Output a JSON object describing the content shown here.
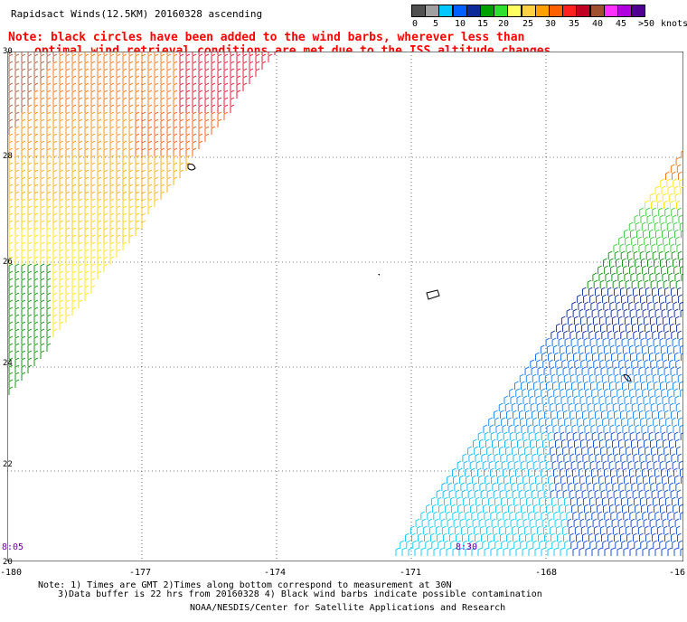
{
  "title": "Rapidsact Winds(12.5KM) 20160328 ascending",
  "note_line1": "Note: black circles have been added to the wind barbs, wherever less than",
  "note_line2": "optimal wind retrieval conditions are met due to the ISS altitude changes.",
  "colorbar": {
    "unit_label": "knots",
    "labels": [
      "0",
      "5",
      "10",
      "15",
      "20",
      "25",
      "30",
      "35",
      "40",
      "45",
      ">50"
    ],
    "colors": [
      "#505050",
      "#a0a0a0",
      "#00c8ff",
      "#0060ff",
      "#0a2a9a",
      "#00a000",
      "#30e030",
      "#ffff60",
      "#ffd040",
      "#ffa000",
      "#ff6000",
      "#ff2020",
      "#c00020",
      "#a05030",
      "#ff30ff",
      "#b000e0",
      "#500090"
    ]
  },
  "axes": {
    "x_ticks": [
      "-180",
      "-177",
      "-174",
      "-171",
      "-168",
      "-16"
    ],
    "y_ticks": [
      "30",
      "28",
      "26",
      "24",
      "22",
      "20"
    ]
  },
  "pass_times": {
    "left": "8:05",
    "right": "8:30"
  },
  "footnote_line1": "Note: 1) Times are GMT 2)Times along bottom correspond to measurement at 30N",
  "footnote_line2": "3)Data buffer is 22 hrs from 20160328 4) Black wind barbs indicate possible contamination",
  "credit": "NOAA/NESDIS/Center for Satellite Applications and Research"
}
